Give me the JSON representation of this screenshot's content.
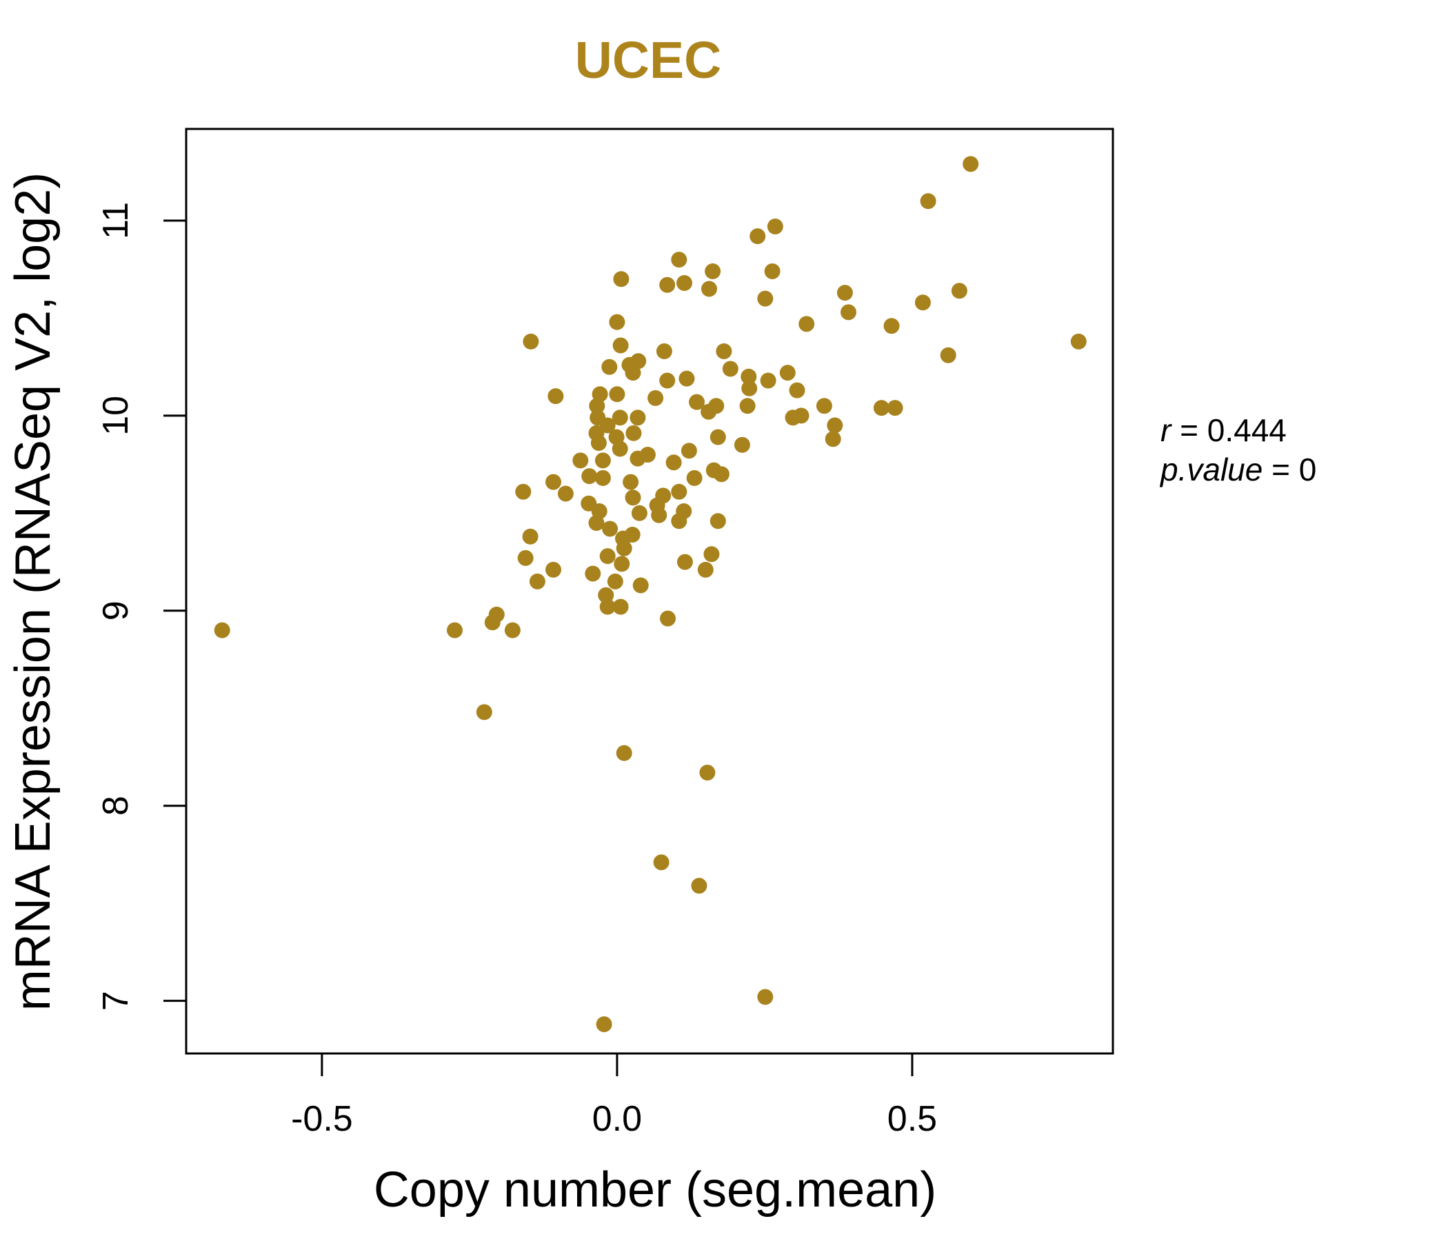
{
  "title": "UCEC",
  "colors": {
    "accent": "#AD841C",
    "point": "#A8821D",
    "axis": "#000000",
    "background": "#ffffff"
  },
  "annotation": {
    "r_label": "r",
    "r_eq": " = 0.444",
    "p_label": "p.value",
    "p_eq": " = 0"
  },
  "chart_data": {
    "type": "scatter",
    "title": "UCEC",
    "xlabel": "Copy number (seg.mean)",
    "ylabel": "mRNA Expression (RNASeq V2, log2)",
    "xlim": [
      -0.73,
      0.84
    ],
    "ylim": [
      6.73,
      11.47
    ],
    "x_ticks": [
      -0.5,
      0.0,
      0.5
    ],
    "x_tick_labels": [
      "-0.5",
      "0.0",
      "0.5"
    ],
    "y_ticks": [
      7,
      8,
      9,
      10,
      11
    ],
    "y_tick_labels": [
      "7",
      "8",
      "9",
      "10",
      "11"
    ],
    "grid": false,
    "legend": "none",
    "stats": {
      "r": 0.444,
      "p_value": 0
    },
    "points": [
      [
        0.238,
        10.92
      ],
      [
        0.268,
        10.97
      ],
      [
        0.105,
        10.8
      ],
      [
        0.162,
        10.74
      ],
      [
        0.007,
        10.7
      ],
      [
        0.085,
        10.67
      ],
      [
        0.114,
        10.68
      ],
      [
        0.156,
        10.65
      ],
      [
        0.263,
        10.74
      ],
      [
        0.251,
        10.6
      ],
      [
        0.321,
        10.47
      ],
      [
        0.0,
        10.48
      ],
      [
        -0.146,
        10.38
      ],
      [
        0.006,
        10.36
      ],
      [
        0.08,
        10.33
      ],
      [
        -0.013,
        10.25
      ],
      [
        0.021,
        10.26
      ],
      [
        0.036,
        10.28
      ],
      [
        0.027,
        10.22
      ],
      [
        0.181,
        10.33
      ],
      [
        0.192,
        10.24
      ],
      [
        0.223,
        10.2
      ],
      [
        0.085,
        10.18
      ],
      [
        0.118,
        10.19
      ],
      [
        0.224,
        10.14
      ],
      [
        0.256,
        10.18
      ],
      [
        0.289,
        10.22
      ],
      [
        0.305,
        10.13
      ],
      [
        -0.104,
        10.1
      ],
      [
        -0.029,
        10.11
      ],
      [
        0.0,
        10.11
      ],
      [
        0.065,
        10.09
      ],
      [
        0.135,
        10.07
      ],
      [
        0.155,
        10.02
      ],
      [
        0.168,
        10.05
      ],
      [
        0.171,
        9.89
      ],
      [
        0.221,
        10.05
      ],
      [
        0.298,
        9.99
      ],
      [
        0.312,
        10.0
      ],
      [
        -0.034,
        10.05
      ],
      [
        -0.033,
        9.99
      ],
      [
        -0.016,
        9.95
      ],
      [
        0.005,
        9.99
      ],
      [
        -0.035,
        9.91
      ],
      [
        -0.001,
        9.89
      ],
      [
        0.028,
        9.91
      ],
      [
        0.035,
        9.99
      ],
      [
        0.599,
        11.29
      ],
      [
        0.527,
        11.1
      ],
      [
        0.386,
        10.63
      ],
      [
        0.392,
        10.53
      ],
      [
        0.518,
        10.58
      ],
      [
        0.58,
        10.64
      ],
      [
        0.465,
        10.46
      ],
      [
        0.561,
        10.31
      ],
      [
        0.782,
        10.38
      ],
      [
        0.351,
        10.05
      ],
      [
        0.448,
        10.04
      ],
      [
        0.471,
        10.04
      ],
      [
        0.369,
        9.95
      ],
      [
        0.366,
        9.88
      ],
      [
        -0.669,
        8.9
      ],
      [
        -0.275,
        8.9
      ],
      [
        -0.204,
        8.98
      ],
      [
        -0.211,
        8.94
      ],
      [
        -0.225,
        8.48
      ],
      [
        -0.031,
        9.86
      ],
      [
        0.005,
        9.83
      ],
      [
        0.035,
        9.78
      ],
      [
        0.052,
        9.8
      ],
      [
        -0.062,
        9.77
      ],
      [
        -0.024,
        9.77
      ],
      [
        -0.108,
        9.66
      ],
      [
        -0.087,
        9.6
      ],
      [
        -0.159,
        9.61
      ],
      [
        0.023,
        9.66
      ],
      [
        0.027,
        9.58
      ],
      [
        -0.048,
        9.55
      ],
      [
        -0.03,
        9.51
      ],
      [
        0.038,
        9.5
      ],
      [
        -0.035,
        9.45
      ],
      [
        -0.012,
        9.42
      ],
      [
        0.01,
        9.37
      ],
      [
        0.026,
        9.39
      ],
      [
        -0.147,
        9.38
      ],
      [
        -0.155,
        9.27
      ],
      [
        0.012,
        9.32
      ],
      [
        -0.016,
        9.28
      ],
      [
        0.008,
        9.24
      ],
      [
        -0.108,
        9.21
      ],
      [
        -0.135,
        9.15
      ],
      [
        -0.041,
        9.19
      ],
      [
        -0.003,
        9.15
      ],
      [
        0.04,
        9.13
      ],
      [
        -0.019,
        9.08
      ],
      [
        -0.047,
        9.69
      ],
      [
        -0.024,
        9.68
      ],
      [
        0.212,
        9.85
      ],
      [
        0.122,
        9.82
      ],
      [
        0.096,
        9.76
      ],
      [
        0.164,
        9.72
      ],
      [
        0.177,
        9.7
      ],
      [
        0.131,
        9.68
      ],
      [
        0.105,
        9.61
      ],
      [
        0.078,
        9.59
      ],
      [
        0.068,
        9.54
      ],
      [
        0.071,
        9.49
      ],
      [
        0.113,
        9.51
      ],
      [
        0.105,
        9.46
      ],
      [
        0.171,
        9.46
      ],
      [
        0.16,
        9.29
      ],
      [
        0.115,
        9.25
      ],
      [
        0.15,
        9.21
      ],
      [
        -0.177,
        8.9
      ],
      [
        -0.016,
        9.02
      ],
      [
        0.006,
        9.02
      ],
      [
        0.086,
        8.96
      ],
      [
        0.012,
        8.27
      ],
      [
        0.153,
        8.17
      ],
      [
        0.075,
        7.71
      ],
      [
        0.139,
        7.59
      ],
      [
        0.251,
        7.02
      ],
      [
        -0.022,
        6.88
      ]
    ]
  }
}
